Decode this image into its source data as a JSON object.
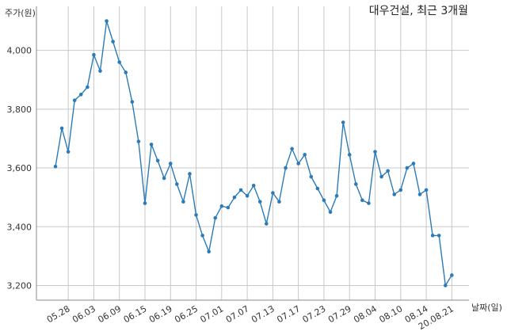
{
  "chart_data": {
    "type": "line",
    "title": "대우건설, 최근 3개월",
    "ylabel": "주가(원)",
    "xlabel": "날짜(일)",
    "ylim": [
      3150,
      4150
    ],
    "yticks": [
      3200,
      3400,
      3600,
      3800,
      4000
    ],
    "ytick_labels": [
      "3,200",
      "3,400",
      "3,600",
      "3,800",
      "4,000"
    ],
    "xtick_labels": [
      "05.28",
      "06.03",
      "06.09",
      "06.15",
      "06.19",
      "06.25",
      "07.01",
      "07.07",
      "07.13",
      "07.17",
      "07.23",
      "07.29",
      "08.04",
      "08.10",
      "08.14",
      "20.08.21"
    ],
    "grid": true,
    "line_color": "#2b7bb9",
    "values": [
      3605,
      3735,
      3655,
      3830,
      3850,
      3875,
      3985,
      3930,
      4100,
      4030,
      3960,
      3925,
      3825,
      3690,
      3480,
      3680,
      3625,
      3565,
      3615,
      3545,
      3485,
      3580,
      3440,
      3370,
      3315,
      3430,
      3470,
      3465,
      3500,
      3525,
      3505,
      3540,
      3485,
      3410,
      3515,
      3485,
      3600,
      3665,
      3615,
      3645,
      3570,
      3530,
      3490,
      3450,
      3505,
      3755,
      3645,
      3545,
      3490,
      3480,
      3655,
      3570,
      3590,
      3510,
      3525,
      3600,
      3615,
      3510,
      3525,
      3370,
      3370,
      3200,
      3235
    ]
  }
}
